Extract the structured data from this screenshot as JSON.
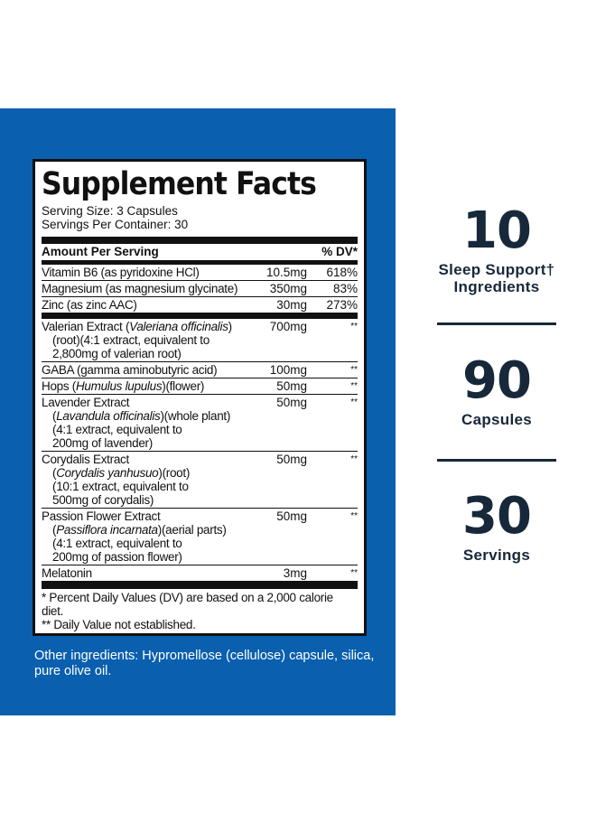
{
  "facts": {
    "title": "Supplement Facts",
    "serving_size": "Serving Size: 3 Capsules",
    "servings_per_container": "Servings Per Container: 30",
    "amount_header": "Amount Per Serving",
    "dv_header": "% DV*",
    "vitamins": [
      {
        "name": "Vitamin B6 (as pyridoxine HCl)",
        "amount": "10.5mg",
        "dv": "618%"
      },
      {
        "name": "Magnesium (as magnesium glycinate)",
        "amount": "350mg",
        "dv": "83%"
      },
      {
        "name": "Zinc (as zinc AAC)",
        "amount": "30mg",
        "dv": "273%"
      }
    ],
    "blend": [
      {
        "name_a": "Valerian Extract (",
        "latin": "Valeriana officinalis",
        "name_b": ")",
        "sub": [
          "(root)(4:1 extract, equivalent to",
          "2,800mg of valerian root)"
        ],
        "amount": "700mg",
        "dv": "**"
      },
      {
        "name_a": "GABA (gamma aminobutyric acid)",
        "latin": "",
        "name_b": "",
        "sub": [],
        "amount": "100mg",
        "dv": "**"
      },
      {
        "name_a": "Hops (",
        "latin": "Humulus lupulus",
        "name_b": ")(flower)",
        "sub": [],
        "amount": "50mg",
        "dv": "**"
      },
      {
        "name_a": "Lavender Extract",
        "latin": "",
        "name_b": "",
        "sub_latin": "Lavandula officinalis",
        "sub_latin_after": ")(whole plant)",
        "sub": [
          "(4:1 extract, equivalent to",
          "200mg of lavender)"
        ],
        "amount": "50mg",
        "dv": "**"
      },
      {
        "name_a": "Corydalis Extract",
        "latin": "",
        "name_b": "",
        "sub_latin": "Corydalis yanhusuo",
        "sub_latin_after": ")(root)",
        "sub": [
          "(10:1 extract, equivalent to",
          "500mg of corydalis)"
        ],
        "amount": "50mg",
        "dv": "**"
      },
      {
        "name_a": "Passion Flower Extract",
        "latin": "",
        "name_b": "",
        "sub_latin": "Passiflora incarnata",
        "sub_latin_after": ")(aerial parts)",
        "sub": [
          "(4:1 extract, equivalent to",
          "200mg of passion flower)"
        ],
        "amount": "50mg",
        "dv": "**"
      },
      {
        "name_a": "Melatonin",
        "latin": "",
        "name_b": "",
        "sub": [],
        "amount": "3mg",
        "dv": "**"
      }
    ],
    "footnote_1": "* Percent Daily Values (DV) are based on a 2,000 calorie diet.",
    "footnote_2": "** Daily Value not established."
  },
  "other_ingredients": "Other ingredients: Hypromellose (cellulose) capsule, silica, pure olive oil.",
  "stats": [
    {
      "number": "10",
      "label_1": "Sleep Support†",
      "label_2": "Ingredients"
    },
    {
      "number": "90",
      "label_1": "Capsules",
      "label_2": ""
    },
    {
      "number": "30",
      "label_1": "Servings",
      "label_2": ""
    }
  ],
  "colors": {
    "panel_blue": "#0a5fae",
    "stat_text": "#17283a"
  }
}
